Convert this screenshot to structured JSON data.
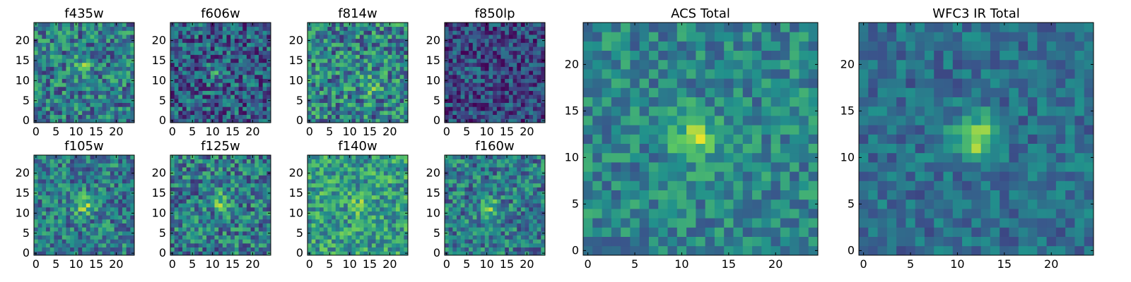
{
  "colormap": [
    "#440154",
    "#3b528b",
    "#21918c",
    "#5ec962",
    "#fde725"
  ],
  "chart_data": [
    {
      "type": "heatmap",
      "title": "f435w",
      "grid": false,
      "size": 25,
      "seed": 11,
      "peak": [
        12,
        14
      ],
      "peak_amp": 0.22,
      "noise": 0.55,
      "bias": 0.42,
      "xticks": [
        0,
        5,
        10,
        15,
        20
      ],
      "yticks": [
        0,
        5,
        10,
        15,
        20
      ],
      "xlim": [
        -0.5,
        24.5
      ],
      "ylim": [
        -0.5,
        24.5
      ]
    },
    {
      "type": "heatmap",
      "title": "f606w",
      "grid": false,
      "size": 25,
      "seed": 23,
      "peak": [
        11,
        12
      ],
      "peak_amp": 0.2,
      "noise": 0.55,
      "bias": 0.3,
      "xticks": [
        0,
        5,
        10,
        15,
        20
      ],
      "yticks": [
        0,
        5,
        10,
        15,
        20
      ],
      "xlim": [
        -0.5,
        24.5
      ],
      "ylim": [
        -0.5,
        24.5
      ]
    },
    {
      "type": "heatmap",
      "title": "f814w",
      "grid": false,
      "size": 25,
      "seed": 37,
      "peak": [
        15,
        9
      ],
      "peak_amp": 0.25,
      "noise": 0.6,
      "bias": 0.45,
      "xticks": [
        0,
        5,
        10,
        15,
        20
      ],
      "yticks": [
        0,
        5,
        10,
        15,
        20
      ],
      "xlim": [
        -0.5,
        24.5
      ],
      "ylim": [
        -0.5,
        24.5
      ]
    },
    {
      "type": "heatmap",
      "title": "f850lp",
      "grid": false,
      "size": 25,
      "seed": 41,
      "peak": [
        6,
        12
      ],
      "peak_amp": 0.1,
      "noise": 0.45,
      "bias": 0.22,
      "xticks": [
        0,
        5,
        10,
        15,
        20
      ],
      "yticks": [
        0,
        5,
        10,
        15,
        20
      ],
      "xlim": [
        -0.5,
        24.5
      ],
      "ylim": [
        -0.5,
        24.5
      ]
    },
    {
      "type": "heatmap",
      "title": "f105w",
      "grid": false,
      "size": 25,
      "seed": 53,
      "peak": [
        12,
        12
      ],
      "peak_amp": 0.35,
      "noise": 0.5,
      "bias": 0.42,
      "xticks": [
        0,
        5,
        10,
        15,
        20
      ],
      "yticks": [
        0,
        5,
        10,
        15,
        20
      ],
      "xlim": [
        -0.5,
        24.5
      ],
      "ylim": [
        -0.5,
        24.5
      ]
    },
    {
      "type": "heatmap",
      "title": "f125w",
      "grid": false,
      "size": 25,
      "seed": 67,
      "peak": [
        12,
        13
      ],
      "peak_amp": 0.3,
      "noise": 0.55,
      "bias": 0.42,
      "xticks": [
        0,
        5,
        10,
        15,
        20
      ],
      "yticks": [
        0,
        5,
        10,
        15,
        20
      ],
      "xlim": [
        -0.5,
        24.5
      ],
      "ylim": [
        -0.5,
        24.5
      ]
    },
    {
      "type": "heatmap",
      "title": "f140w",
      "grid": false,
      "size": 25,
      "seed": 71,
      "peak": [
        13,
        12
      ],
      "peak_amp": 0.2,
      "noise": 0.5,
      "bias": 0.55,
      "xticks": [
        0,
        5,
        10,
        15,
        20
      ],
      "yticks": [
        0,
        5,
        10,
        15,
        20
      ],
      "xlim": [
        -0.5,
        24.5
      ],
      "ylim": [
        -0.5,
        24.5
      ]
    },
    {
      "type": "heatmap",
      "title": "f160w",
      "grid": false,
      "size": 25,
      "seed": 83,
      "peak": [
        11,
        11
      ],
      "peak_amp": 0.35,
      "noise": 0.5,
      "bias": 0.42,
      "xticks": [
        0,
        5,
        10,
        15,
        20
      ],
      "yticks": [
        0,
        5,
        10,
        15,
        20
      ],
      "xlim": [
        -0.5,
        24.5
      ],
      "ylim": [
        -0.5,
        24.5
      ]
    },
    {
      "type": "heatmap",
      "title": "ACS Total",
      "grid": false,
      "size": 25,
      "seed": 97,
      "peak": [
        11.5,
        12
      ],
      "peak_amp": 0.38,
      "noise": 0.38,
      "bias": 0.45,
      "xticks": [
        0,
        5,
        10,
        15,
        20
      ],
      "yticks": [
        0,
        5,
        10,
        15,
        20
      ],
      "xlim": [
        -0.5,
        24.5
      ],
      "ylim": [
        -0.5,
        24.5
      ]
    },
    {
      "type": "heatmap",
      "title": "WFC3 IR Total",
      "grid": false,
      "size": 25,
      "seed": 109,
      "peak": [
        12,
        12
      ],
      "peak_amp": 0.5,
      "noise": 0.3,
      "bias": 0.36,
      "xticks": [
        0,
        5,
        10,
        15,
        20
      ],
      "yticks": [
        0,
        5,
        10,
        15,
        20
      ],
      "xlim": [
        -0.5,
        24.5
      ],
      "ylim": [
        -0.5,
        24.5
      ]
    }
  ]
}
